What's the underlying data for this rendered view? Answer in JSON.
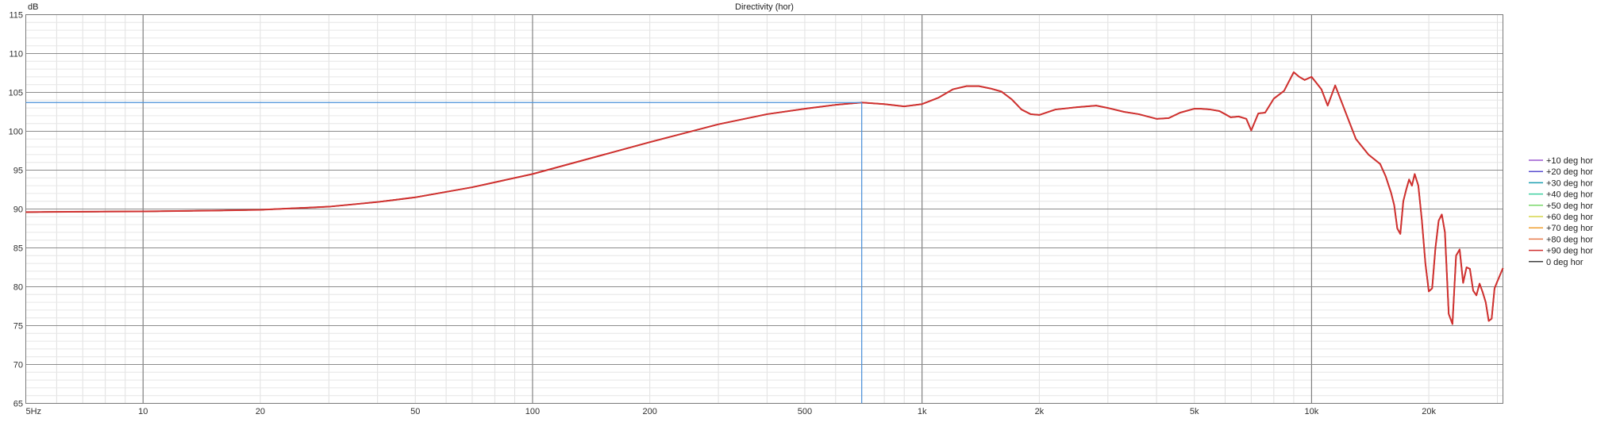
{
  "chart_data": {
    "type": "line",
    "title": "Directivity (hor)",
    "ylabel": "dB",
    "xlabel": "",
    "x_scale": "log",
    "xlim": [
      5,
      31000
    ],
    "ylim": [
      65,
      115
    ],
    "grid": true,
    "legend_position": "right",
    "x_ticks": [
      {
        "value": 5,
        "label": "5Hz"
      },
      {
        "value": 10,
        "label": "10"
      },
      {
        "value": 20,
        "label": "20"
      },
      {
        "value": 50,
        "label": "50"
      },
      {
        "value": 100,
        "label": "100"
      },
      {
        "value": 200,
        "label": "200"
      },
      {
        "value": 500,
        "label": "500"
      },
      {
        "value": 1000,
        "label": "1k"
      },
      {
        "value": 2000,
        "label": "2k"
      },
      {
        "value": 5000,
        "label": "5k"
      },
      {
        "value": 10000,
        "label": "10k"
      },
      {
        "value": 20000,
        "label": "20k"
      }
    ],
    "y_ticks": [
      65,
      70,
      75,
      80,
      85,
      90,
      95,
      100,
      105,
      110,
      115
    ],
    "cursor": {
      "x": 700,
      "y": 103.7,
      "color": "#4a90d9"
    },
    "series": [
      {
        "name": "+10 deg hor",
        "color": "#9b59d0"
      },
      {
        "name": "+20 deg hor",
        "color": "#5a4fcf"
      },
      {
        "name": "+30 deg hor",
        "color": "#1a9fb0"
      },
      {
        "name": "+40 deg hor",
        "color": "#3fd0a0"
      },
      {
        "name": "+50 deg hor",
        "color": "#7ad86a"
      },
      {
        "name": "+60 deg hor",
        "color": "#d6d64a"
      },
      {
        "name": "+70 deg hor",
        "color": "#f0a030"
      },
      {
        "name": "+80 deg hor",
        "color": "#e87a4a"
      },
      {
        "name": "+90 deg hor",
        "color": "#d03030"
      },
      {
        "name": "0 deg hor",
        "color": "#404040"
      }
    ],
    "response": {
      "x": [
        5,
        7,
        10,
        15,
        20,
        30,
        40,
        50,
        70,
        100,
        150,
        200,
        300,
        400,
        500,
        600,
        700,
        800,
        900,
        1000,
        1100,
        1200,
        1300,
        1400,
        1500,
        1600,
        1700,
        1800,
        1900,
        2000,
        2200,
        2500,
        2800,
        3000,
        3300,
        3600,
        4000,
        4300,
        4600,
        5000,
        5200,
        5500,
        5800,
        6000,
        6200,
        6500,
        6800,
        7000,
        7300,
        7600,
        8000,
        8500,
        9000,
        9300,
        9600,
        10000,
        10300,
        10600,
        11000,
        11500,
        12000,
        12500,
        13000,
        14000,
        15000,
        15500,
        16000,
        16300,
        16600,
        16900,
        17200,
        17500,
        17800,
        18100,
        18400,
        18800,
        19200,
        19600,
        20000,
        20400,
        20800,
        21200,
        21600,
        22000,
        22500,
        23000,
        23500,
        24000,
        24500,
        25000,
        25500,
        26000,
        26500,
        27000,
        27500,
        28000,
        28500,
        29000,
        29500,
        30000,
        31000
      ],
      "y": [
        89.6,
        89.65,
        89.7,
        89.8,
        89.9,
        90.3,
        90.9,
        91.5,
        92.8,
        94.5,
        96.9,
        98.6,
        100.9,
        102.2,
        102.9,
        103.4,
        103.7,
        103.5,
        103.2,
        103.5,
        104.3,
        105.4,
        105.8,
        105.8,
        105.5,
        105.1,
        104.1,
        102.8,
        102.2,
        102.1,
        102.8,
        103.1,
        103.3,
        103.0,
        102.5,
        102.2,
        101.6,
        101.7,
        102.4,
        102.9,
        102.9,
        102.8,
        102.6,
        102.2,
        101.8,
        101.9,
        101.6,
        100.1,
        102.3,
        102.4,
        104.2,
        105.2,
        107.6,
        107.0,
        106.6,
        107.0,
        106.2,
        105.4,
        103.3,
        105.9,
        103.5,
        101.2,
        99.0,
        97.0,
        95.8,
        94.2,
        92.1,
        90.5,
        87.5,
        86.8,
        91.0,
        92.5,
        93.8,
        93.0,
        94.5,
        93.0,
        88.5,
        83.0,
        79.4,
        79.8,
        85.0,
        88.5,
        89.3,
        87.0,
        76.5,
        75.2,
        84.0,
        84.8,
        80.5,
        82.5,
        82.3,
        79.5,
        78.9,
        80.4,
        79.3,
        78.0,
        75.6,
        75.9,
        79.8,
        80.7,
        82.4
      ]
    }
  }
}
